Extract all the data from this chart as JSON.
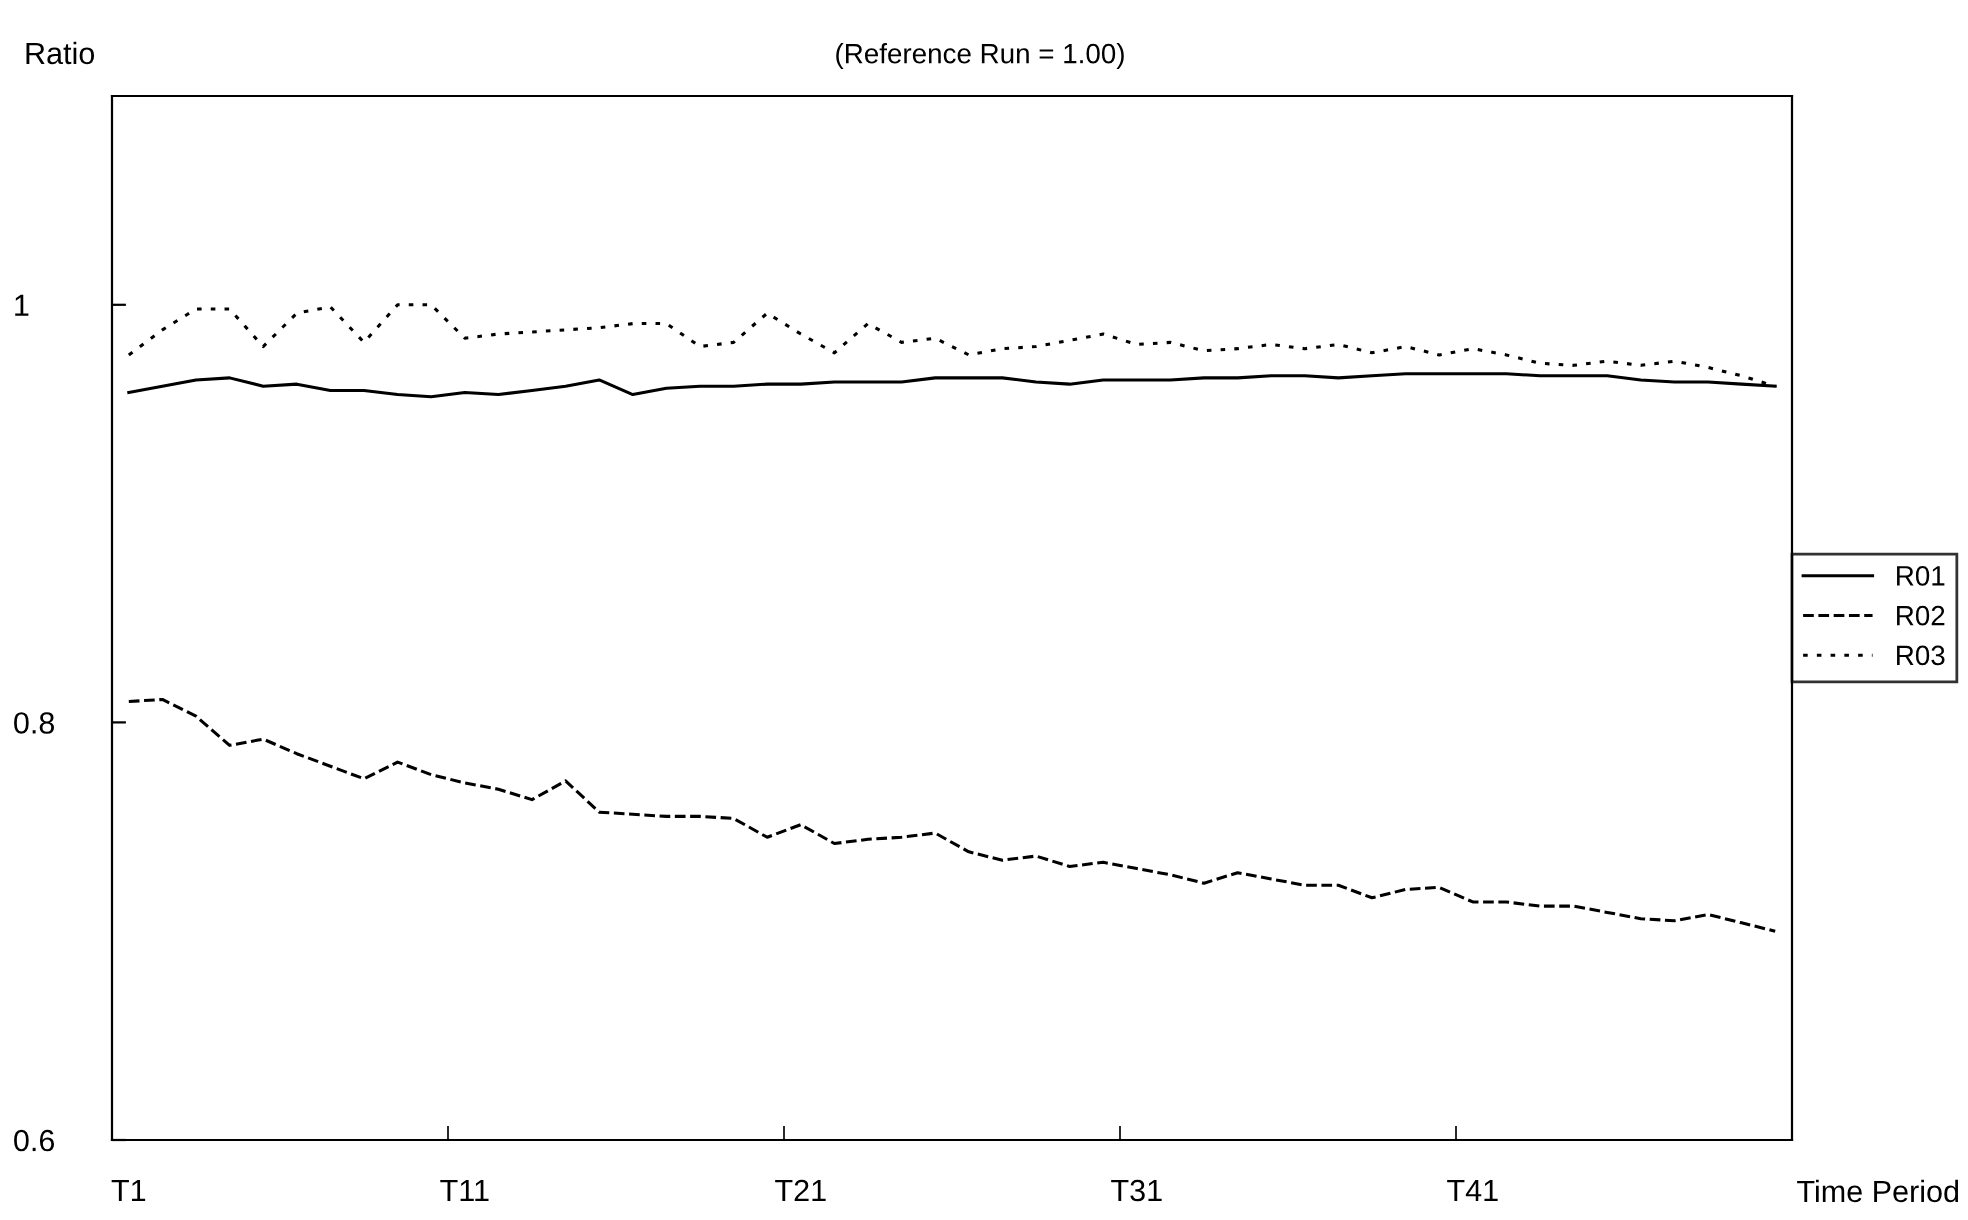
{
  "chart_data": {
    "type": "line",
    "title": "(Reference Run = 1.00)",
    "ylabel": "Ratio",
    "xlabel": "Time Period",
    "categories": [
      "T1",
      null,
      null,
      null,
      null,
      null,
      null,
      null,
      null,
      null,
      "T11",
      null,
      null,
      null,
      null,
      null,
      null,
      null,
      null,
      null,
      "T21",
      null,
      null,
      null,
      null,
      null,
      null,
      null,
      null,
      null,
      "T31",
      null,
      null,
      null,
      null,
      null,
      null,
      null,
      null,
      null,
      "T41",
      null,
      null,
      null,
      null,
      null,
      null,
      null,
      null,
      null
    ],
    "series": [
      {
        "name": "R01",
        "color": "#000000",
        "line_style": "solid",
        "values": [
          0.958,
          0.961,
          0.964,
          0.965,
          0.961,
          0.962,
          0.959,
          0.959,
          0.957,
          0.956,
          0.958,
          0.957,
          0.959,
          0.961,
          0.964,
          0.957,
          0.96,
          0.961,
          0.961,
          0.962,
          0.962,
          0.963,
          0.963,
          0.963,
          0.965,
          0.965,
          0.965,
          0.963,
          0.962,
          0.964,
          0.964,
          0.964,
          0.965,
          0.965,
          0.966,
          0.966,
          0.965,
          0.966,
          0.967,
          0.967,
          0.967,
          0.967,
          0.966,
          0.966,
          0.966,
          0.964,
          0.963,
          0.963,
          0.962,
          0.961
        ]
      },
      {
        "name": "R02",
        "color": "#000000",
        "line_style": "dashed",
        "values": [
          0.81,
          0.811,
          0.803,
          0.789,
          0.792,
          0.785,
          0.779,
          0.773,
          0.781,
          0.775,
          0.771,
          0.768,
          0.763,
          0.772,
          0.757,
          0.756,
          0.755,
          0.755,
          0.754,
          0.745,
          0.751,
          0.742,
          0.744,
          0.745,
          0.747,
          0.738,
          0.734,
          0.736,
          0.731,
          0.733,
          0.73,
          0.727,
          0.723,
          0.728,
          0.725,
          0.722,
          0.722,
          0.716,
          0.72,
          0.721,
          0.714,
          0.714,
          0.712,
          0.712,
          0.709,
          0.706,
          0.705,
          0.708,
          0.704,
          0.7
        ]
      },
      {
        "name": "R03",
        "color": "#000000",
        "line_style": "dotted",
        "values": [
          0.976,
          0.988,
          0.998,
          0.998,
          0.98,
          0.996,
          0.999,
          0.982,
          1.0,
          1.0,
          0.984,
          0.986,
          0.987,
          0.988,
          0.989,
          0.991,
          0.991,
          0.98,
          0.982,
          0.996,
          0.986,
          0.977,
          0.991,
          0.982,
          0.984,
          0.976,
          0.979,
          0.98,
          0.983,
          0.986,
          0.981,
          0.982,
          0.978,
          0.979,
          0.981,
          0.979,
          0.981,
          0.977,
          0.98,
          0.976,
          0.979,
          0.976,
          0.972,
          0.971,
          0.973,
          0.971,
          0.973,
          0.97,
          0.966,
          0.961
        ]
      }
    ],
    "ylim": [
      0.6,
      1.1
    ],
    "yticks": [
      0.6,
      0.8,
      1
    ],
    "grid": false,
    "legend": "right",
    "marker": "none"
  }
}
